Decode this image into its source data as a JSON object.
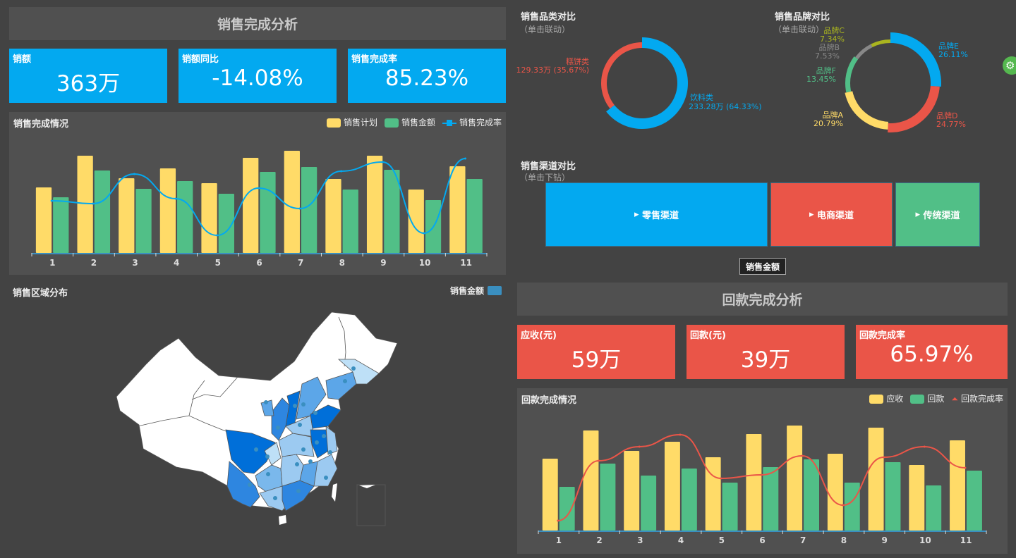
{
  "sales": {
    "title": "销售完成分析",
    "kpis": [
      {
        "label": "销额",
        "value": "363万"
      },
      {
        "label": "销额同比",
        "value": "-14.08%"
      },
      {
        "label": "销售完成率",
        "value": "85.23%"
      }
    ]
  },
  "category": {
    "title": "销售品类对比",
    "hint": "（单击联动）",
    "items": [
      {
        "name": "饮料类",
        "label": "233.28万 (64.33%)",
        "percent": 64.33,
        "color": "#03a9f0"
      },
      {
        "name": "糕饼类",
        "label": "129.33万 (35.67%)",
        "percent": 35.67,
        "color": "#ea5548"
      }
    ]
  },
  "brand": {
    "title": "销售品牌对比",
    "hint": "（单击联动）",
    "items": [
      {
        "name": "品牌E",
        "pct": "26.11%",
        "percent": 26.11,
        "color": "#03a9f0"
      },
      {
        "name": "品牌D",
        "pct": "24.77%",
        "percent": 24.77,
        "color": "#ea5548"
      },
      {
        "name": "品牌A",
        "pct": "20.79%",
        "percent": 20.79,
        "color": "#ffdb68"
      },
      {
        "name": "品牌F",
        "pct": "13.45%",
        "percent": 13.45,
        "color": "#51bf87"
      },
      {
        "name": "品牌B",
        "pct": "7.53%",
        "percent": 7.53,
        "color": "#888888"
      },
      {
        "name": "品牌C",
        "pct": "7.34%",
        "percent": 7.34,
        "color": "#aab51f"
      }
    ]
  },
  "channel": {
    "title": "销售渠道对比",
    "hint": "（单击下钻）",
    "items": [
      {
        "name": "零售渠道",
        "color": "#03a9f0"
      },
      {
        "name": "电商渠道",
        "color": "#ea5548"
      },
      {
        "name": "传统渠道",
        "color": "#51bf87"
      }
    ],
    "measure_button": "销售金额"
  },
  "map": {
    "title": "销售区域分布",
    "legend": "销售金额",
    "legend_color": "#3a8fc0"
  },
  "payback": {
    "title": "回款完成分析",
    "kpis": [
      {
        "label": "应收(元)",
        "value": "59万"
      },
      {
        "label": "回款(元)",
        "value": "39万"
      },
      {
        "label": "回款完成率",
        "value": "65.97%"
      }
    ]
  },
  "chart_data": [
    {
      "type": "bar",
      "title": "销售完成情况",
      "categories": [
        "1",
        "2",
        "3",
        "4",
        "5",
        "6",
        "7",
        "8",
        "9",
        "10",
        "11"
      ],
      "series": [
        {
          "name": "销售计划",
          "kind": "bar",
          "color": "#ffdb68",
          "values": [
            93,
            138,
            106,
            120,
            99,
            135,
            145,
            105,
            138,
            90,
            123
          ]
        },
        {
          "name": "销售金额",
          "kind": "bar",
          "color": "#51bf87",
          "values": [
            79,
            117,
            91,
            102,
            84,
            115,
            122,
            90,
            118,
            75,
            105
          ]
        },
        {
          "name": "销售完成率",
          "kind": "line",
          "color": "#03a9f0",
          "values": [
            74,
            70,
            112,
            77,
            25,
            92,
            63,
            116,
            129,
            28,
            134
          ]
        }
      ],
      "legend": "top-right",
      "grid": false
    },
    {
      "type": "bar",
      "title": "回款完成情况",
      "categories": [
        "1",
        "2",
        "3",
        "4",
        "5",
        "6",
        "7",
        "8",
        "9",
        "10",
        "11"
      ],
      "series": [
        {
          "name": "应收",
          "kind": "bar",
          "color": "#ffdb68",
          "values": [
            102,
            142,
            113,
            126,
            104,
            137,
            149,
            109,
            146,
            93,
            128
          ]
        },
        {
          "name": "回款",
          "kind": "bar",
          "color": "#51bf87",
          "values": [
            62,
            95,
            78,
            88,
            68,
            90,
            101,
            68,
            97,
            64,
            85
          ]
        },
        {
          "name": "回款完成率",
          "kind": "line",
          "color": "#ea5548",
          "values": [
            14,
            99,
            119,
            136,
            74,
            79,
            106,
            36,
            104,
            119,
            89
          ]
        }
      ],
      "legend": "top-right",
      "grid": false
    }
  ]
}
